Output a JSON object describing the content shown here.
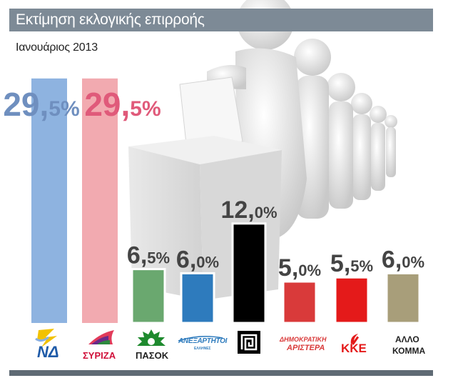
{
  "header": {
    "title": "Εκτίμηση εκλογικής επιρροής",
    "subtitle": "Ιανουάριος 2013"
  },
  "colors": {
    "title_bar": "#7d8a96",
    "bottom_bar": "#5f6a74"
  },
  "chart_data": {
    "type": "bar",
    "title": "Εκτίμηση εκλογικής επιρροής",
    "subtitle": "Ιανουάριος 2013",
    "categories": [
      "ΝΔ",
      "ΣΥΡΙΖΑ",
      "ΠΑΣΟΚ",
      "ΑΝΕΞΑΡΤΗΤΟΙ ΕΛΛΗΝΕΣ",
      "ΧΡΥΣΗ ΑΥΓΗ",
      "ΔΗΜΟΚΡΑΤΙΚΗ ΑΡΙΣΤΕΡΑ",
      "ΚΚΕ",
      "ΑΛΛΟ ΚΟΜΜΑ"
    ],
    "values": [
      29.5,
      29.5,
      6.5,
      6.0,
      12.0,
      5.0,
      5.5,
      6.0
    ],
    "value_labels": [
      {
        "int": "29,",
        "dec": "5%"
      },
      {
        "int": "29,",
        "dec": "5%"
      },
      {
        "int": "6,",
        "dec": "5%"
      },
      {
        "int": "6,",
        "dec": "0%"
      },
      {
        "int": "12,",
        "dec": "0%"
      },
      {
        "int": "5,",
        "dec": "0%"
      },
      {
        "int": "5,",
        "dec": "5%"
      },
      {
        "int": "6,",
        "dec": "0%"
      }
    ],
    "colors": [
      "#8eb3e0",
      "#f2aab0",
      "#6aa86f",
      "#2e7bbd",
      "#000000",
      "#d93a3a",
      "#e41a1a",
      "#a89e7a"
    ],
    "label_colors": [
      "#6f8fbf",
      "#e05a7a",
      "#444444",
      "#444444",
      "#444444",
      "#444444",
      "#444444",
      "#444444"
    ],
    "ylim": [
      0,
      30
    ],
    "grid": false,
    "legend": "none"
  },
  "logos": {
    "nd": "ΝΔ",
    "syriza": "ΣΥΡΙΖΑ",
    "pasok": "ΠΑΣΟΚ",
    "anel": "ΑΝΕΞΑΡΤΗΤΟΙ",
    "anel_sub": "ΕΛΛΗΝΕΣ",
    "dimar_1": "ΔΗΜΟΚΡΑΤΙΚΗ",
    "dimar_2": "ΑΡΙΣΤΕΡΑ",
    "kke": "ΚΚΕ",
    "other_1": "ΑΛΛΟ",
    "other_2": "ΚΟΜΜΑ"
  },
  "icons": [
    "nd-lamp-icon",
    "syriza-flag-icon",
    "pasok-sun-icon",
    "meander-icon",
    "hammer-sickle-icon"
  ]
}
